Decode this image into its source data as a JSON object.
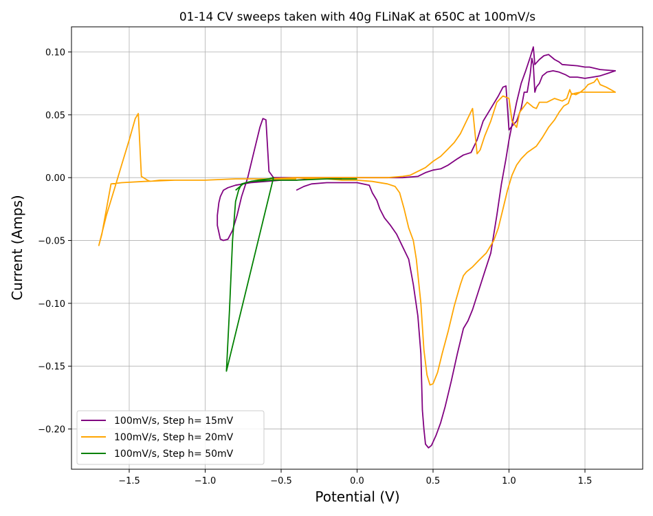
{
  "chart_data": {
    "type": "line",
    "title": "01-14 CV sweeps taken with 40g FLiNaK at 650C at 100mV/s",
    "xlabel": "Potential (V)",
    "ylabel": "Current (Amps)",
    "xlim": [
      -1.88,
      1.88
    ],
    "ylim": [
      -0.232,
      0.12
    ],
    "xticks": [
      -1.5,
      -1.0,
      -0.5,
      0.0,
      0.5,
      1.0,
      1.5
    ],
    "xtick_labels": [
      "−1.5",
      "−1.0",
      "−0.5",
      "0.0",
      "0.5",
      "1.0",
      "1.5"
    ],
    "yticks": [
      -0.2,
      -0.15,
      -0.1,
      -0.05,
      0.0,
      0.05,
      0.1
    ],
    "ytick_labels": [
      "−0.20",
      "−0.15",
      "−0.10",
      "−0.05",
      "0.00",
      "0.05",
      "0.10"
    ],
    "grid": true,
    "legend_position": "lower-left",
    "series": [
      {
        "name": "100mV/s, Step h= 15mV",
        "color": "#800080",
        "points": [
          [
            -0.4,
            -0.01
          ],
          [
            -0.35,
            -0.007
          ],
          [
            -0.3,
            -0.005
          ],
          [
            -0.2,
            -0.004
          ],
          [
            -0.1,
            -0.004
          ],
          [
            0.0,
            -0.004
          ],
          [
            0.08,
            -0.006
          ],
          [
            0.1,
            -0.012
          ],
          [
            0.13,
            -0.018
          ],
          [
            0.15,
            -0.025
          ],
          [
            0.18,
            -0.032
          ],
          [
            0.22,
            -0.038
          ],
          [
            0.26,
            -0.045
          ],
          [
            0.3,
            -0.055
          ],
          [
            0.34,
            -0.065
          ],
          [
            0.37,
            -0.085
          ],
          [
            0.4,
            -0.11
          ],
          [
            0.42,
            -0.14
          ],
          [
            0.43,
            -0.185
          ],
          [
            0.44,
            -0.2
          ],
          [
            0.45,
            -0.212
          ],
          [
            0.47,
            -0.215
          ],
          [
            0.49,
            -0.213
          ],
          [
            0.52,
            -0.205
          ],
          [
            0.55,
            -0.195
          ],
          [
            0.58,
            -0.182
          ],
          [
            0.62,
            -0.162
          ],
          [
            0.66,
            -0.14
          ],
          [
            0.7,
            -0.12
          ],
          [
            0.73,
            -0.114
          ],
          [
            0.76,
            -0.105
          ],
          [
            0.8,
            -0.09
          ],
          [
            0.84,
            -0.075
          ],
          [
            0.88,
            -0.06
          ],
          [
            0.9,
            -0.045
          ],
          [
            0.92,
            -0.03
          ],
          [
            0.95,
            -0.005
          ],
          [
            0.98,
            0.015
          ],
          [
            1.0,
            0.03
          ],
          [
            1.02,
            0.042
          ],
          [
            1.05,
            0.06
          ],
          [
            1.08,
            0.075
          ],
          [
            1.11,
            0.085
          ],
          [
            1.14,
            0.096
          ],
          [
            1.16,
            0.104
          ],
          [
            1.17,
            0.09
          ],
          [
            1.2,
            0.094
          ],
          [
            1.23,
            0.097
          ],
          [
            1.26,
            0.098
          ],
          [
            1.3,
            0.094
          ],
          [
            1.33,
            0.092
          ],
          [
            1.35,
            0.09
          ],
          [
            1.45,
            0.089
          ],
          [
            1.5,
            0.088
          ],
          [
            1.53,
            0.088
          ],
          [
            1.6,
            0.086
          ],
          [
            1.7,
            0.085
          ],
          [
            1.65,
            0.083
          ],
          [
            1.6,
            0.081
          ],
          [
            1.55,
            0.08
          ],
          [
            1.5,
            0.079
          ],
          [
            1.45,
            0.08
          ],
          [
            1.4,
            0.08
          ],
          [
            1.37,
            0.082
          ],
          [
            1.33,
            0.084
          ],
          [
            1.29,
            0.085
          ],
          [
            1.25,
            0.084
          ],
          [
            1.22,
            0.081
          ],
          [
            1.2,
            0.075
          ],
          [
            1.18,
            0.072
          ],
          [
            1.17,
            0.068
          ],
          [
            1.16,
            0.09
          ],
          [
            1.15,
            0.095
          ],
          [
            1.14,
            0.083
          ],
          [
            1.12,
            0.068
          ],
          [
            1.1,
            0.068
          ],
          [
            1.08,
            0.055
          ],
          [
            1.05,
            0.045
          ],
          [
            1.02,
            0.041
          ],
          [
            1.0,
            0.038
          ],
          [
            0.98,
            0.073
          ],
          [
            0.96,
            0.072
          ],
          [
            0.93,
            0.065
          ],
          [
            0.88,
            0.055
          ],
          [
            0.83,
            0.045
          ],
          [
            0.79,
            0.03
          ],
          [
            0.75,
            0.02
          ],
          [
            0.7,
            0.018
          ],
          [
            0.66,
            0.015
          ],
          [
            0.6,
            0.01
          ],
          [
            0.55,
            0.007
          ],
          [
            0.5,
            0.006
          ],
          [
            0.45,
            0.004
          ],
          [
            0.4,
            0.001
          ],
          [
            0.3,
            0.0
          ],
          [
            0.2,
            0.0
          ],
          [
            0.0,
            0.0
          ],
          [
            -0.2,
            0.0
          ],
          [
            -0.4,
            0.0
          ],
          [
            -0.5,
            0.0
          ],
          [
            -0.55,
            0.0
          ],
          [
            -0.58,
            0.005
          ],
          [
            -0.6,
            0.046
          ],
          [
            -0.62,
            0.047
          ],
          [
            -0.64,
            0.04
          ],
          [
            -0.68,
            0.02
          ],
          [
            -0.72,
            0.0
          ],
          [
            -0.76,
            -0.015
          ],
          [
            -0.79,
            -0.03
          ],
          [
            -0.82,
            -0.042
          ],
          [
            -0.85,
            -0.049
          ],
          [
            -0.88,
            -0.05
          ],
          [
            -0.9,
            -0.049
          ],
          [
            -0.92,
            -0.038
          ],
          [
            -0.92,
            -0.03
          ],
          [
            -0.91,
            -0.02
          ],
          [
            -0.9,
            -0.015
          ],
          [
            -0.88,
            -0.01
          ],
          [
            -0.85,
            -0.008
          ],
          [
            -0.8,
            -0.006
          ],
          [
            -0.7,
            -0.004
          ],
          [
            -0.6,
            -0.003
          ],
          [
            -0.5,
            -0.002
          ],
          [
            -0.4,
            -0.002
          ],
          [
            -0.3,
            -0.001
          ],
          [
            -0.2,
            -0.001
          ],
          [
            -0.1,
            -0.001
          ]
        ]
      },
      {
        "name": "100mV/s, Step h= 20mV",
        "color": "#FFA500",
        "points": [
          [
            -0.4,
            0.0
          ],
          [
            -0.3,
            -0.001
          ],
          [
            -0.2,
            -0.001
          ],
          [
            -0.1,
            -0.002
          ],
          [
            0.0,
            -0.002
          ],
          [
            0.1,
            -0.003
          ],
          [
            0.2,
            -0.005
          ],
          [
            0.25,
            -0.007
          ],
          [
            0.28,
            -0.012
          ],
          [
            0.31,
            -0.025
          ],
          [
            0.34,
            -0.04
          ],
          [
            0.37,
            -0.05
          ],
          [
            0.39,
            -0.065
          ],
          [
            0.42,
            -0.1
          ],
          [
            0.44,
            -0.137
          ],
          [
            0.46,
            -0.157
          ],
          [
            0.48,
            -0.165
          ],
          [
            0.5,
            -0.164
          ],
          [
            0.53,
            -0.155
          ],
          [
            0.56,
            -0.14
          ],
          [
            0.6,
            -0.122
          ],
          [
            0.64,
            -0.102
          ],
          [
            0.68,
            -0.085
          ],
          [
            0.7,
            -0.078
          ],
          [
            0.72,
            -0.075
          ],
          [
            0.76,
            -0.071
          ],
          [
            0.8,
            -0.066
          ],
          [
            0.85,
            -0.06
          ],
          [
            0.9,
            -0.05
          ],
          [
            0.93,
            -0.04
          ],
          [
            0.96,
            -0.025
          ],
          [
            0.99,
            -0.01
          ],
          [
            1.02,
            0.002
          ],
          [
            1.05,
            0.01
          ],
          [
            1.08,
            0.015
          ],
          [
            1.12,
            0.02
          ],
          [
            1.18,
            0.025
          ],
          [
            1.22,
            0.032
          ],
          [
            1.26,
            0.04
          ],
          [
            1.3,
            0.046
          ],
          [
            1.33,
            0.052
          ],
          [
            1.36,
            0.057
          ],
          [
            1.39,
            0.059
          ],
          [
            1.41,
            0.066
          ],
          [
            1.43,
            0.067
          ],
          [
            1.47,
            0.068
          ],
          [
            1.53,
            0.068
          ],
          [
            1.58,
            0.068
          ],
          [
            1.64,
            0.068
          ],
          [
            1.7,
            0.068
          ],
          [
            1.67,
            0.07
          ],
          [
            1.64,
            0.072
          ],
          [
            1.6,
            0.074
          ],
          [
            1.58,
            0.079
          ],
          [
            1.56,
            0.076
          ],
          [
            1.54,
            0.075
          ],
          [
            1.52,
            0.074
          ],
          [
            1.5,
            0.071
          ],
          [
            1.47,
            0.068
          ],
          [
            1.44,
            0.066
          ],
          [
            1.41,
            0.067
          ],
          [
            1.4,
            0.07
          ],
          [
            1.38,
            0.063
          ],
          [
            1.35,
            0.061
          ],
          [
            1.3,
            0.063
          ],
          [
            1.25,
            0.06
          ],
          [
            1.2,
            0.06
          ],
          [
            1.18,
            0.055
          ],
          [
            1.16,
            0.056
          ],
          [
            1.12,
            0.06
          ],
          [
            1.07,
            0.052
          ],
          [
            1.05,
            0.04
          ],
          [
            1.02,
            0.045
          ],
          [
            1.0,
            0.063
          ],
          [
            0.96,
            0.065
          ],
          [
            0.92,
            0.06
          ],
          [
            0.88,
            0.045
          ],
          [
            0.84,
            0.033
          ],
          [
            0.81,
            0.022
          ],
          [
            0.79,
            0.019
          ],
          [
            0.76,
            0.055
          ],
          [
            0.72,
            0.045
          ],
          [
            0.68,
            0.035
          ],
          [
            0.64,
            0.028
          ],
          [
            0.6,
            0.023
          ],
          [
            0.55,
            0.017
          ],
          [
            0.5,
            0.013
          ],
          [
            0.45,
            0.008
          ],
          [
            0.4,
            0.005
          ],
          [
            0.35,
            0.002
          ],
          [
            0.3,
            0.001
          ],
          [
            0.2,
            0.0
          ],
          [
            0.1,
            0.0
          ],
          [
            0.0,
            0.0
          ],
          [
            -0.2,
            0.0
          ],
          [
            -0.4,
            0.0
          ],
          [
            -0.6,
            -0.001
          ],
          [
            -0.8,
            -0.001
          ],
          [
            -1.0,
            -0.002
          ],
          [
            -1.2,
            -0.002
          ],
          [
            -1.3,
            -0.002
          ],
          [
            -1.36,
            -0.003
          ],
          [
            -1.38,
            -0.002
          ],
          [
            -1.42,
            0.001
          ],
          [
            -1.44,
            0.051
          ],
          [
            -1.46,
            0.047
          ],
          [
            -1.5,
            0.03
          ],
          [
            -1.55,
            0.01
          ],
          [
            -1.6,
            -0.01
          ],
          [
            -1.65,
            -0.03
          ],
          [
            -1.7,
            -0.054
          ],
          [
            -1.68,
            -0.045
          ],
          [
            -1.62,
            -0.005
          ],
          [
            -1.55,
            -0.004
          ],
          [
            -1.4,
            -0.003
          ],
          [
            -1.2,
            -0.002
          ],
          [
            -1.0,
            -0.002
          ],
          [
            -0.8,
            -0.001
          ],
          [
            -0.6,
            -0.001
          ],
          [
            -0.4,
            -0.001
          ]
        ]
      },
      {
        "name": "100mV/s, Step h= 50mV",
        "color": "#008000",
        "points": [
          [
            0.0,
            -0.001
          ],
          [
            -0.1,
            -0.001
          ],
          [
            -0.2,
            -0.001
          ],
          [
            -0.4,
            -0.002
          ],
          [
            -0.55,
            -0.002
          ],
          [
            -0.7,
            -0.003
          ],
          [
            -0.76,
            -0.005
          ],
          [
            -0.78,
            -0.01
          ],
          [
            -0.8,
            -0.019
          ],
          [
            -0.82,
            -0.05
          ],
          [
            -0.84,
            -0.105
          ],
          [
            -0.85,
            -0.13
          ],
          [
            -0.86,
            -0.154
          ],
          [
            -0.55,
            0.0
          ],
          [
            -0.58,
            -0.001
          ],
          [
            -0.65,
            -0.002
          ],
          [
            -0.7,
            -0.003
          ],
          [
            -0.75,
            -0.005
          ],
          [
            -0.78,
            -0.008
          ],
          [
            -0.8,
            -0.01
          ]
        ]
      }
    ]
  }
}
